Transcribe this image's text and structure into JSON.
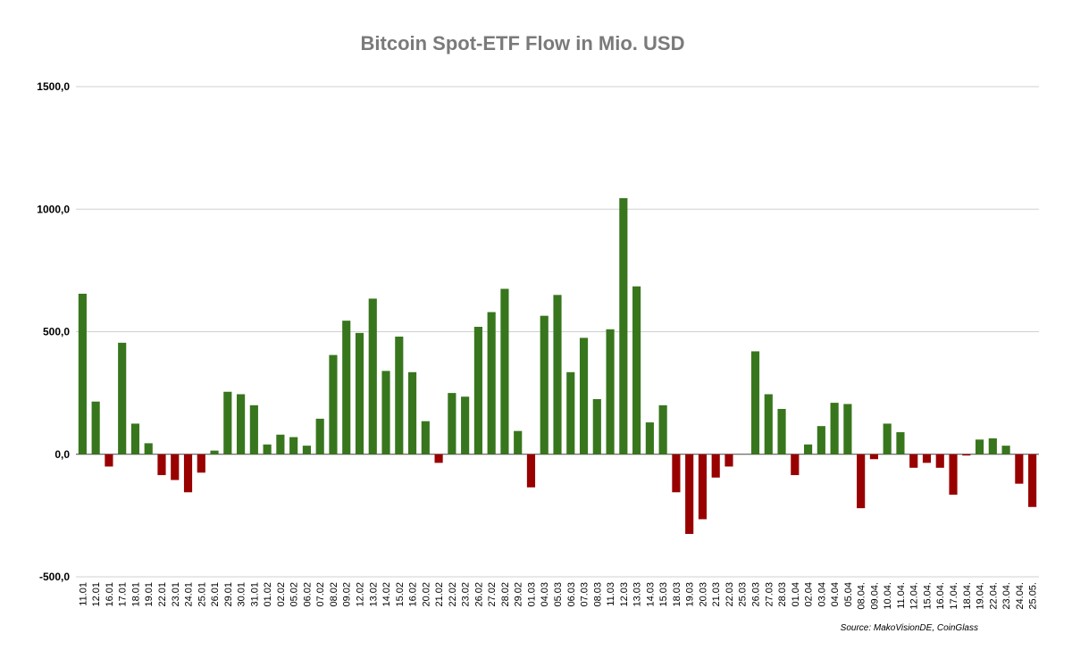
{
  "chart_data": {
    "type": "bar",
    "title": "Bitcoin Spot-ETF Flow in Mio. USD",
    "xlabel": "",
    "ylabel": "",
    "ylim": [
      -500,
      1500
    ],
    "yticks": [
      -500,
      0,
      500,
      1000,
      1500
    ],
    "ytick_labels": [
      "-500,0",
      "0,0",
      "500,0",
      "1000,0",
      "1500,0"
    ],
    "grid": true,
    "positive_color": "#38761d",
    "negative_color": "#990000",
    "categories": [
      "11.01",
      "12.01",
      "16.01",
      "17.01",
      "18.01",
      "19.01",
      "22.01",
      "23.01",
      "24.01",
      "25.01",
      "26.01",
      "29.01",
      "30.01",
      "31.01",
      "01.02",
      "02.02",
      "05.02",
      "06.02",
      "07.02",
      "08.02",
      "09.02",
      "12.02",
      "13.02",
      "14.02",
      "15.02",
      "16.02",
      "20.02",
      "21.02",
      "22.02",
      "23.02",
      "26.02",
      "27.02",
      "28.02",
      "29.02",
      "01.03",
      "04.03",
      "05.03",
      "06.03",
      "07.03",
      "08.03",
      "11.03",
      "12.03",
      "13.03",
      "14.03",
      "15.03",
      "18.03",
      "19.03",
      "20.03",
      "21.03",
      "22.03",
      "25.03",
      "26.03",
      "27.03",
      "28.03",
      "01.04",
      "02.04",
      "03.04",
      "04.04",
      "05.04",
      "08.04.",
      "09.04.",
      "10.04.",
      "11.04.",
      "12.04.",
      "15.04.",
      "16.04.",
      "17.04.",
      "18.04.",
      "19.04.",
      "22.04.",
      "23.04.",
      "24.04.",
      "25.05."
    ],
    "values": [
      655,
      215,
      -50,
      455,
      125,
      45,
      -85,
      -105,
      -155,
      -75,
      15,
      255,
      245,
      200,
      40,
      80,
      70,
      35,
      145,
      405,
      545,
      495,
      635,
      340,
      480,
      335,
      135,
      -35,
      250,
      235,
      520,
      580,
      675,
      95,
      -135,
      565,
      650,
      335,
      475,
      225,
      510,
      1045,
      685,
      130,
      200,
      -155,
      -325,
      -265,
      -95,
      -50,
      0,
      420,
      245,
      185,
      -85,
      40,
      115,
      210,
      205,
      -220,
      -20,
      125,
      90,
      -55,
      -35,
      -55,
      -165,
      -5,
      60,
      65,
      35,
      -120,
      -215
    ]
  },
  "source_note": "Source: MakoVisionDE, CoinGlass"
}
